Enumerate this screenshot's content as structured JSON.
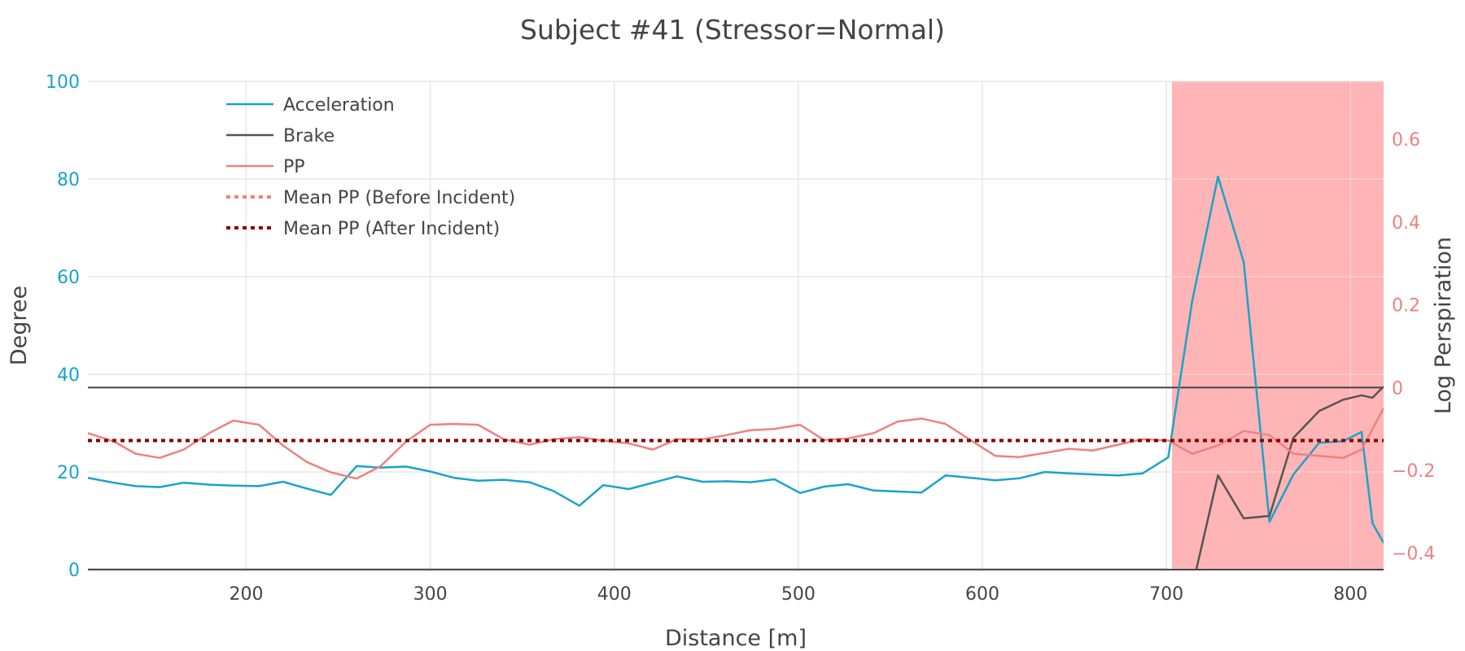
{
  "chart_data": {
    "type": "line",
    "title": "Subject #41 (Stressor=Normal)",
    "xlabel": "Distance [m]",
    "ylabel_left": "Degree",
    "ylabel_right": "Log Perspiration",
    "xlim": [
      114,
      818
    ],
    "xticks": [
      200,
      300,
      400,
      500,
      600,
      700,
      800
    ],
    "ylim_left": [
      0,
      100
    ],
    "yticks_left": [
      0,
      20,
      40,
      60,
      80,
      100
    ],
    "ylim_right": [
      -0.44,
      0.74
    ],
    "yticks_right": [
      -0.4,
      -0.2,
      0,
      0.2,
      0.4,
      0.6
    ],
    "ytick_right_labels": [
      "−0.4",
      "−0.2",
      "0",
      "0.2",
      "0.4",
      "0.6"
    ],
    "grid": true,
    "legend_position": "top-left",
    "incident_region": {
      "x_start": 703,
      "x_end": 818,
      "color": "#ffb3b3"
    },
    "series": [
      {
        "name": "Acceleration",
        "axis": "left",
        "color": "#1aa3c9",
        "style": "solid",
        "x": [
          114,
          128,
          140,
          153,
          166,
          180,
          193,
          207,
          220,
          233,
          246,
          260,
          273,
          287,
          300,
          313,
          326,
          340,
          354,
          367,
          381,
          394,
          408,
          421,
          434,
          448,
          461,
          474,
          487,
          501,
          514,
          527,
          541,
          554,
          567,
          580,
          594,
          607,
          620,
          634,
          647,
          660,
          674,
          687,
          701,
          714,
          728,
          742,
          756,
          769,
          783,
          796,
          806,
          812,
          818
        ],
        "y": [
          18.8,
          17.8,
          17.1,
          16.9,
          17.8,
          17.4,
          17.2,
          17.1,
          18.0,
          16.6,
          15.3,
          21.2,
          20.9,
          21.1,
          20.1,
          18.8,
          18.2,
          18.4,
          17.9,
          16.1,
          13.1,
          17.3,
          16.5,
          17.8,
          19.1,
          18.0,
          18.1,
          17.9,
          18.5,
          15.7,
          17.0,
          17.5,
          16.2,
          16.0,
          15.8,
          19.3,
          18.8,
          18.3,
          18.7,
          20.0,
          19.7,
          19.5,
          19.3,
          19.7,
          23.0,
          55.0,
          80.5,
          63.0,
          9.8,
          19.5,
          26.0,
          26.3,
          28.2,
          9.5,
          5.5
        ]
      },
      {
        "name": "Brake",
        "axis": "left",
        "color": "#555555",
        "style": "solid",
        "x": [
          114,
          701,
          715,
          728,
          742,
          756,
          769,
          783,
          796,
          806,
          812,
          818
        ],
        "y": [
          0,
          0,
          -2,
          19.3,
          10.5,
          11.0,
          27.0,
          32.5,
          34.8,
          35.7,
          35.2,
          37.5
        ]
      },
      {
        "name": "PP",
        "axis": "right",
        "color": "#f08080",
        "style": "solid",
        "x": [
          114,
          128,
          140,
          153,
          166,
          180,
          193,
          207,
          220,
          233,
          246,
          260,
          273,
          287,
          300,
          313,
          326,
          340,
          354,
          367,
          381,
          394,
          408,
          421,
          434,
          448,
          461,
          474,
          487,
          501,
          514,
          527,
          541,
          554,
          567,
          580,
          594,
          607,
          620,
          634,
          647,
          660,
          674,
          687,
          701,
          714,
          728,
          742,
          756,
          769,
          783,
          796,
          806,
          812,
          818
        ],
        "y": [
          -0.11,
          -0.13,
          -0.16,
          -0.17,
          -0.15,
          -0.11,
          -0.08,
          -0.09,
          -0.14,
          -0.18,
          -0.205,
          -0.22,
          -0.19,
          -0.13,
          -0.09,
          -0.088,
          -0.09,
          -0.125,
          -0.138,
          -0.125,
          -0.12,
          -0.128,
          -0.135,
          -0.15,
          -0.125,
          -0.125,
          -0.115,
          -0.103,
          -0.1,
          -0.09,
          -0.127,
          -0.123,
          -0.11,
          -0.082,
          -0.075,
          -0.088,
          -0.128,
          -0.165,
          -0.168,
          -0.158,
          -0.148,
          -0.152,
          -0.138,
          -0.125,
          -0.128,
          -0.16,
          -0.14,
          -0.105,
          -0.115,
          -0.16,
          -0.165,
          -0.17,
          -0.15,
          -0.1,
          -0.05
        ]
      },
      {
        "name": "Mean PP (Before Incident)",
        "axis": "right",
        "color": "#f08080",
        "style": "dotted",
        "x": [
          114,
          818
        ],
        "y": [
          -0.128,
          -0.128
        ]
      },
      {
        "name": "Mean PP (After Incident)",
        "axis": "right",
        "color": "#8b0000",
        "style": "dotted",
        "x": [
          114,
          818
        ],
        "y": [
          -0.128,
          -0.128
        ]
      }
    ]
  }
}
